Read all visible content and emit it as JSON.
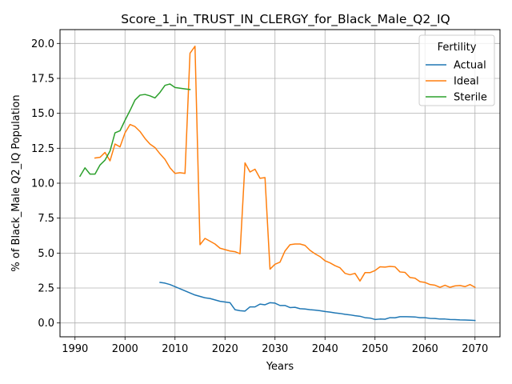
{
  "chart_data": {
    "type": "line",
    "title": "Score_1_in_TRUST_IN_CLERGY_for_Black_Male_Q2_IQ",
    "xlabel": "Years",
    "ylabel": "% of Black_Male Q2_IQ Population",
    "xlim": [
      1987,
      2075
    ],
    "ylim": [
      -0.99,
      20.99
    ],
    "xticks": [
      1990,
      2000,
      2010,
      2020,
      2030,
      2040,
      2050,
      2060,
      2070
    ],
    "yticks": [
      0.0,
      2.5,
      5.0,
      7.5,
      10.0,
      12.5,
      15.0,
      17.5,
      20.0
    ],
    "ytick_labels": [
      "0.0",
      "2.5",
      "5.0",
      "7.5",
      "10.0",
      "12.5",
      "15.0",
      "17.5",
      "20.0"
    ],
    "grid": true,
    "legend": {
      "title": "Fertility",
      "placement": "top-right"
    },
    "series": [
      {
        "name": "Actual",
        "color": "#1f77b4",
        "points": [
          [
            2007,
            2.9
          ],
          [
            2008,
            2.85
          ],
          [
            2009,
            2.75
          ],
          [
            2010,
            2.6
          ],
          [
            2011,
            2.45
          ],
          [
            2012,
            2.3
          ],
          [
            2013,
            2.15
          ],
          [
            2014,
            2.0
          ],
          [
            2015,
            1.9
          ],
          [
            2016,
            1.8
          ],
          [
            2017,
            1.75
          ],
          [
            2018,
            1.65
          ],
          [
            2019,
            1.55
          ],
          [
            2020,
            1.5
          ],
          [
            2021,
            1.45
          ],
          [
            2022,
            0.95
          ],
          [
            2023,
            0.88
          ],
          [
            2024,
            0.85
          ],
          [
            2025,
            1.15
          ],
          [
            2026,
            1.15
          ],
          [
            2027,
            1.35
          ],
          [
            2028,
            1.3
          ],
          [
            2029,
            1.45
          ],
          [
            2030,
            1.42
          ],
          [
            2031,
            1.25
          ],
          [
            2032,
            1.25
          ],
          [
            2033,
            1.1
          ],
          [
            2034,
            1.12
          ],
          [
            2035,
            1.02
          ],
          [
            2036,
            1.0
          ],
          [
            2037,
            0.95
          ],
          [
            2038,
            0.92
          ],
          [
            2039,
            0.88
          ],
          [
            2040,
            0.82
          ],
          [
            2041,
            0.78
          ],
          [
            2042,
            0.72
          ],
          [
            2043,
            0.68
          ],
          [
            2044,
            0.62
          ],
          [
            2045,
            0.58
          ],
          [
            2046,
            0.52
          ],
          [
            2047,
            0.48
          ],
          [
            2048,
            0.38
          ],
          [
            2049,
            0.35
          ],
          [
            2050,
            0.25
          ],
          [
            2051,
            0.28
          ],
          [
            2052,
            0.27
          ],
          [
            2053,
            0.38
          ],
          [
            2054,
            0.37
          ],
          [
            2055,
            0.45
          ],
          [
            2056,
            0.45
          ],
          [
            2057,
            0.44
          ],
          [
            2058,
            0.43
          ],
          [
            2059,
            0.38
          ],
          [
            2060,
            0.38
          ],
          [
            2061,
            0.33
          ],
          [
            2062,
            0.32
          ],
          [
            2063,
            0.28
          ],
          [
            2064,
            0.28
          ],
          [
            2065,
            0.25
          ],
          [
            2066,
            0.24
          ],
          [
            2067,
            0.22
          ],
          [
            2068,
            0.21
          ],
          [
            2069,
            0.2
          ],
          [
            2070,
            0.18
          ]
        ]
      },
      {
        "name": "Ideal",
        "color": "#ff7f0e",
        "points": [
          [
            1994,
            11.8
          ],
          [
            1995,
            11.85
          ],
          [
            1996,
            12.2
          ],
          [
            1997,
            11.6
          ],
          [
            1998,
            12.8
          ],
          [
            1999,
            12.6
          ],
          [
            2000,
            13.6
          ],
          [
            2001,
            14.2
          ],
          [
            2002,
            14.05
          ],
          [
            2003,
            13.7
          ],
          [
            2004,
            13.2
          ],
          [
            2005,
            12.8
          ],
          [
            2006,
            12.55
          ],
          [
            2007,
            12.1
          ],
          [
            2008,
            11.7
          ],
          [
            2009,
            11.1
          ],
          [
            2010,
            10.7
          ],
          [
            2011,
            10.75
          ],
          [
            2012,
            10.7
          ],
          [
            2013,
            19.3
          ],
          [
            2014,
            19.8
          ],
          [
            2015,
            5.6
          ],
          [
            2016,
            6.05
          ],
          [
            2017,
            5.85
          ],
          [
            2018,
            5.65
          ],
          [
            2019,
            5.35
          ],
          [
            2020,
            5.25
          ],
          [
            2021,
            5.15
          ],
          [
            2022,
            5.1
          ],
          [
            2023,
            4.95
          ],
          [
            2024,
            11.45
          ],
          [
            2025,
            10.8
          ],
          [
            2026,
            11.0
          ],
          [
            2027,
            10.35
          ],
          [
            2028,
            10.4
          ],
          [
            2029,
            3.85
          ],
          [
            2030,
            4.2
          ],
          [
            2031,
            4.35
          ],
          [
            2032,
            5.15
          ],
          [
            2033,
            5.6
          ],
          [
            2034,
            5.65
          ],
          [
            2035,
            5.65
          ],
          [
            2036,
            5.55
          ],
          [
            2037,
            5.2
          ],
          [
            2038,
            4.95
          ],
          [
            2039,
            4.75
          ],
          [
            2040,
            4.45
          ],
          [
            2041,
            4.3
          ],
          [
            2042,
            4.1
          ],
          [
            2043,
            3.95
          ],
          [
            2044,
            3.55
          ],
          [
            2045,
            3.45
          ],
          [
            2046,
            3.55
          ],
          [
            2047,
            3.0
          ],
          [
            2048,
            3.6
          ],
          [
            2049,
            3.6
          ],
          [
            2050,
            3.75
          ],
          [
            2051,
            4.02
          ],
          [
            2052,
            4.0
          ],
          [
            2053,
            4.05
          ],
          [
            2054,
            4.02
          ],
          [
            2055,
            3.65
          ],
          [
            2056,
            3.62
          ],
          [
            2057,
            3.25
          ],
          [
            2058,
            3.2
          ],
          [
            2059,
            2.95
          ],
          [
            2060,
            2.9
          ],
          [
            2061,
            2.75
          ],
          [
            2062,
            2.7
          ],
          [
            2063,
            2.55
          ],
          [
            2064,
            2.7
          ],
          [
            2065,
            2.55
          ],
          [
            2066,
            2.65
          ],
          [
            2067,
            2.68
          ],
          [
            2068,
            2.6
          ],
          [
            2069,
            2.75
          ],
          [
            2070,
            2.55
          ]
        ]
      },
      {
        "name": "Sterile",
        "color": "#2ca02c",
        "points": [
          [
            1991,
            10.5
          ],
          [
            1992,
            11.1
          ],
          [
            1993,
            10.65
          ],
          [
            1994,
            10.65
          ],
          [
            1995,
            11.3
          ],
          [
            1996,
            11.65
          ],
          [
            1997,
            12.3
          ],
          [
            1998,
            13.6
          ],
          [
            1999,
            13.75
          ],
          [
            2000,
            14.5
          ],
          [
            2001,
            15.2
          ],
          [
            2002,
            15.95
          ],
          [
            2003,
            16.3
          ],
          [
            2004,
            16.35
          ],
          [
            2005,
            16.25
          ],
          [
            2006,
            16.1
          ],
          [
            2007,
            16.5
          ],
          [
            2008,
            17.0
          ],
          [
            2009,
            17.1
          ],
          [
            2010,
            16.85
          ],
          [
            2011,
            16.8
          ],
          [
            2012,
            16.75
          ],
          [
            2013,
            16.7
          ]
        ]
      }
    ]
  }
}
